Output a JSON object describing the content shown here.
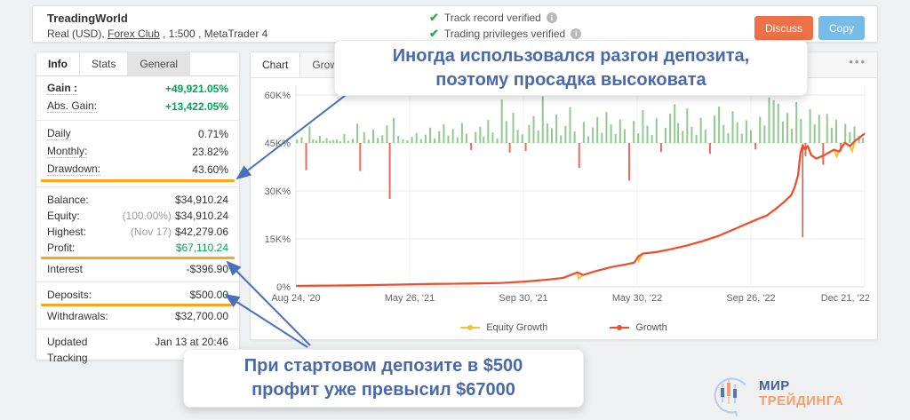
{
  "header": {
    "title": "TreadingWorld",
    "subtitle_prefix": "Real (USD), ",
    "broker": "Forex Club",
    "subtitle_suffix": " , 1:500 , MetaTrader 4",
    "verifications": [
      {
        "label": "Track record verified"
      },
      {
        "label": "Trading privileges verified"
      }
    ],
    "discuss_label": "Discuss",
    "copy_label": "Copy"
  },
  "sidebar": {
    "tabs": [
      {
        "label": "Info",
        "active": true,
        "muted": false
      },
      {
        "label": "Stats",
        "active": false,
        "muted": false
      },
      {
        "label": "General",
        "active": false,
        "muted": true
      }
    ],
    "groups": [
      {
        "rows": [
          {
            "label": "Gain :",
            "dotted": true,
            "bold_label": true,
            "value": "+49,921.05%",
            "green": true,
            "bold_value": true
          },
          {
            "label": "Abs. Gain:",
            "dotted": true,
            "value": "+13,422.05%",
            "green": true,
            "bold_value": true
          }
        ]
      },
      {
        "rows": [
          {
            "label": "Daily",
            "dotted": true,
            "value": "0.71%"
          },
          {
            "label": "Monthly:",
            "dotted": true,
            "value": "23.82%"
          },
          {
            "label": "Drawdown:",
            "dotted": true,
            "value": "43.60%",
            "highlight": true
          }
        ]
      },
      {
        "rows": [
          {
            "label": "Balance:",
            "value": "$34,910.24"
          },
          {
            "label": "Equity:",
            "prefix": "(100.00%)",
            "value": "$34,910.24"
          },
          {
            "label": "Highest:",
            "prefix": "(Nov 17)",
            "value": "$42,279.06"
          },
          {
            "label": "Profit:",
            "value": "$67,110.24",
            "green": true,
            "highlight": true
          },
          {
            "label": "Interest",
            "value": "-$396.90"
          }
        ]
      },
      {
        "rows": [
          {
            "label": "Deposits:",
            "value": "$500.00",
            "highlight": true
          },
          {
            "label": "Withdrawals:",
            "value": "$32,700.00"
          }
        ]
      },
      {
        "rows": [
          {
            "label": "Updated",
            "value": "Jan 13 at 20:46"
          },
          {
            "label": "Tracking",
            "value": ""
          }
        ]
      }
    ]
  },
  "chart_panel": {
    "tabs": [
      {
        "label": "Chart",
        "active": true
      },
      {
        "label": "Growth",
        "active": false
      }
    ],
    "menu_icon": "•••"
  },
  "chart_data": {
    "type": "line",
    "title": "",
    "xlabel": "",
    "ylabel": "",
    "ylim": [
      0,
      60
    ],
    "grid": true,
    "legend_position": "bottom",
    "yticks": [
      {
        "v": 0,
        "label": "0%"
      },
      {
        "v": 15,
        "label": "15K%"
      },
      {
        "v": 30,
        "label": "30K%"
      },
      {
        "v": 45,
        "label": "45K%"
      },
      {
        "v": 60,
        "label": "60K%"
      }
    ],
    "xticks": [
      {
        "f": 0.0,
        "label": "Aug 24, '20"
      },
      {
        "f": 0.2,
        "label": "May 26, '21"
      },
      {
        "f": 0.4,
        "label": "Sep 30, '21"
      },
      {
        "f": 0.6,
        "label": "May 30, '22"
      },
      {
        "f": 0.8,
        "label": "Sep 26, '22"
      },
      {
        "f": 1.0,
        "label": "Dec 21, '22"
      }
    ],
    "series": [
      {
        "name": "Equity Growth",
        "color": "#f2c230"
      },
      {
        "name": "Growth",
        "color": "#ee4e2e"
      }
    ],
    "growth_points": [
      [
        0,
        0.3
      ],
      [
        0.06,
        0.4
      ],
      [
        0.12,
        0.5
      ],
      [
        0.18,
        0.7
      ],
      [
        0.24,
        0.9
      ],
      [
        0.3,
        1.0
      ],
      [
        0.36,
        1.2
      ],
      [
        0.4,
        1.6
      ],
      [
        0.44,
        2.2
      ],
      [
        0.47,
        2.8
      ],
      [
        0.495,
        4.5
      ],
      [
        0.505,
        3.7
      ],
      [
        0.525,
        4.8
      ],
      [
        0.555,
        6.2
      ],
      [
        0.58,
        7.0
      ],
      [
        0.595,
        7.6
      ],
      [
        0.602,
        9.5
      ],
      [
        0.61,
        10.4
      ],
      [
        0.635,
        10.9
      ],
      [
        0.66,
        11.8
      ],
      [
        0.687,
        12.9
      ],
      [
        0.715,
        14.3
      ],
      [
        0.744,
        16.0
      ],
      [
        0.765,
        17.6
      ],
      [
        0.79,
        19.5
      ],
      [
        0.812,
        21.2
      ],
      [
        0.828,
        22.3
      ],
      [
        0.843,
        24.3
      ],
      [
        0.858,
        26.5
      ],
      [
        0.871,
        28.7
      ],
      [
        0.877,
        31.2
      ],
      [
        0.883,
        35.0
      ],
      [
        0.887,
        41.8
      ],
      [
        0.891,
        44.3
      ],
      [
        0.895,
        42.9
      ],
      [
        0.9,
        44.0
      ],
      [
        0.906,
        41.2
      ],
      [
        0.915,
        40.1
      ],
      [
        0.93,
        41.3
      ],
      [
        0.946,
        42.9
      ],
      [
        0.955,
        42.3
      ],
      [
        0.965,
        45.1
      ],
      [
        0.974,
        44.0
      ],
      [
        0.983,
        45.7
      ],
      [
        0.99,
        46.5
      ],
      [
        1,
        48.0
      ]
    ],
    "equity_dips": [
      [
        0.497,
        2.6
      ],
      [
        0.603,
        8.2
      ],
      [
        0.951,
        40.8
      ],
      [
        0.978,
        42.5
      ]
    ],
    "drawdown_wick": {
      "x": 0.891,
      "from": 44.3,
      "to": 15.5
    },
    "bars": {
      "baseline": 45,
      "pos_color": "#8fca8f",
      "neg_color": "#f2675c",
      "values": [
        [
          0.002,
          1.0
        ],
        [
          0.01,
          1.8
        ],
        [
          0.018,
          -8.5
        ],
        [
          0.024,
          5.2
        ],
        [
          0.03,
          1.2
        ],
        [
          0.036,
          0.8
        ],
        [
          0.042,
          2.2
        ],
        [
          0.048,
          0.6
        ],
        [
          0.054,
          1.5
        ],
        [
          0.06,
          0.7
        ],
        [
          0.066,
          0.9
        ],
        [
          0.072,
          1.1
        ],
        [
          0.078,
          0.5
        ],
        [
          0.085,
          2.8
        ],
        [
          0.092,
          0.7
        ],
        [
          0.1,
          1.3
        ],
        [
          0.108,
          6.0
        ],
        [
          0.113,
          -8.8
        ],
        [
          0.12,
          3.4
        ],
        [
          0.128,
          1.0
        ],
        [
          0.136,
          4.2
        ],
        [
          0.144,
          1.6
        ],
        [
          0.152,
          2.4
        ],
        [
          0.16,
          5.5
        ],
        [
          0.165,
          -17.5
        ],
        [
          0.172,
          7.8
        ],
        [
          0.18,
          2.2
        ],
        [
          0.188,
          1.1
        ],
        [
          0.196,
          0.8
        ],
        [
          0.204,
          1.9
        ],
        [
          0.212,
          3.1
        ],
        [
          0.22,
          1.2
        ],
        [
          0.228,
          2.6
        ],
        [
          0.236,
          4.8
        ],
        [
          0.244,
          1.5
        ],
        [
          0.252,
          3.7
        ],
        [
          0.26,
          5.9
        ],
        [
          0.268,
          2.3
        ],
        [
          0.276,
          4.4
        ],
        [
          0.284,
          1.8
        ],
        [
          0.292,
          6.3
        ],
        [
          0.3,
          2.9
        ],
        [
          0.308,
          -2.2
        ],
        [
          0.316,
          3.5
        ],
        [
          0.324,
          5.1
        ],
        [
          0.33,
          2.0
        ],
        [
          0.338,
          7.2
        ],
        [
          0.346,
          3.3
        ],
        [
          0.354,
          1.4
        ],
        [
          0.362,
          13.6
        ],
        [
          0.37,
          6.8
        ],
        [
          0.376,
          -3.0
        ],
        [
          0.382,
          9.5
        ],
        [
          0.39,
          4.1
        ],
        [
          0.398,
          2.7
        ],
        [
          0.404,
          -2.5
        ],
        [
          0.41,
          5.6
        ],
        [
          0.418,
          8.4
        ],
        [
          0.426,
          3.9
        ],
        [
          0.434,
          14.6
        ],
        [
          0.442,
          6.1
        ],
        [
          0.45,
          4.6
        ],
        [
          0.458,
          8.9
        ],
        [
          0.466,
          2.4
        ],
        [
          0.474,
          5.3
        ],
        [
          0.482,
          11.2
        ],
        [
          0.49,
          3.6
        ],
        [
          0.498,
          -7.8
        ],
        [
          0.506,
          6.6
        ],
        [
          0.514,
          2.1
        ],
        [
          0.522,
          4.9
        ],
        [
          0.53,
          8.1
        ],
        [
          0.538,
          3.2
        ],
        [
          0.546,
          9.7
        ],
        [
          0.554,
          5.8
        ],
        [
          0.562,
          2.8
        ],
        [
          0.57,
          7.4
        ],
        [
          0.578,
          4.3
        ],
        [
          0.586,
          -11.8
        ],
        [
          0.594,
          6.9
        ],
        [
          0.602,
          3.0
        ],
        [
          0.61,
          10.3
        ],
        [
          0.618,
          5.4
        ],
        [
          0.626,
          2.5
        ],
        [
          0.634,
          7.7
        ],
        [
          0.642,
          -2.8
        ],
        [
          0.65,
          4.7
        ],
        [
          0.658,
          9.2
        ],
        [
          0.666,
          12.1
        ],
        [
          0.672,
          6.2
        ],
        [
          0.68,
          3.8
        ],
        [
          0.688,
          10.8
        ],
        [
          0.696,
          5.0
        ],
        [
          0.704,
          2.6
        ],
        [
          0.712,
          7.9
        ],
        [
          0.72,
          4.2
        ],
        [
          0.728,
          -3.4
        ],
        [
          0.736,
          8.6
        ],
        [
          0.744,
          11.4
        ],
        [
          0.752,
          5.7
        ],
        [
          0.76,
          3.1
        ],
        [
          0.768,
          9.9
        ],
        [
          0.776,
          6.4
        ],
        [
          0.784,
          2.9
        ],
        [
          0.792,
          7.1
        ],
        [
          0.8,
          4.0
        ],
        [
          0.808,
          -2.0
        ],
        [
          0.816,
          8.2
        ],
        [
          0.824,
          5.5
        ],
        [
          0.832,
          14.2
        ],
        [
          0.84,
          13.4
        ],
        [
          0.848,
          12.3
        ],
        [
          0.856,
          6.7
        ],
        [
          0.864,
          9.4
        ],
        [
          0.872,
          4.5
        ],
        [
          0.88,
          12.8
        ],
        [
          0.888,
          7.6
        ],
        [
          0.896,
          -4.2
        ],
        [
          0.904,
          10.6
        ],
        [
          0.912,
          5.9
        ],
        [
          0.92,
          8.8
        ],
        [
          0.927,
          -6.8
        ],
        [
          0.934,
          9.1
        ],
        [
          0.942,
          4.8
        ],
        [
          0.95,
          7.3
        ],
        [
          0.958,
          -2.6
        ],
        [
          0.966,
          6.0
        ],
        [
          0.974,
          3.4
        ],
        [
          0.982,
          5.2
        ],
        [
          0.99,
          2.2
        ],
        [
          0.997,
          1.6
        ]
      ]
    }
  },
  "annotations": {
    "top": {
      "line1": "Иногда использовался разгон депозита,",
      "line2": "поэтому просадка высоковата"
    },
    "bottom": {
      "line1": "При стартовом депозите в $500",
      "line2": "профит уже превысил $67000"
    }
  },
  "logo": {
    "line1": "МИР",
    "line2": "ТРЕЙДИНГА"
  },
  "colors": {
    "green_value": "#00a651",
    "highlight_orange": "#ffa21c",
    "check_green": "#2fae4e",
    "discuss_button": "#ee7046",
    "copy_button": "#77bce9",
    "annotation_blue": "#4a69ad",
    "arrow_blue": "#4a6fc0"
  }
}
